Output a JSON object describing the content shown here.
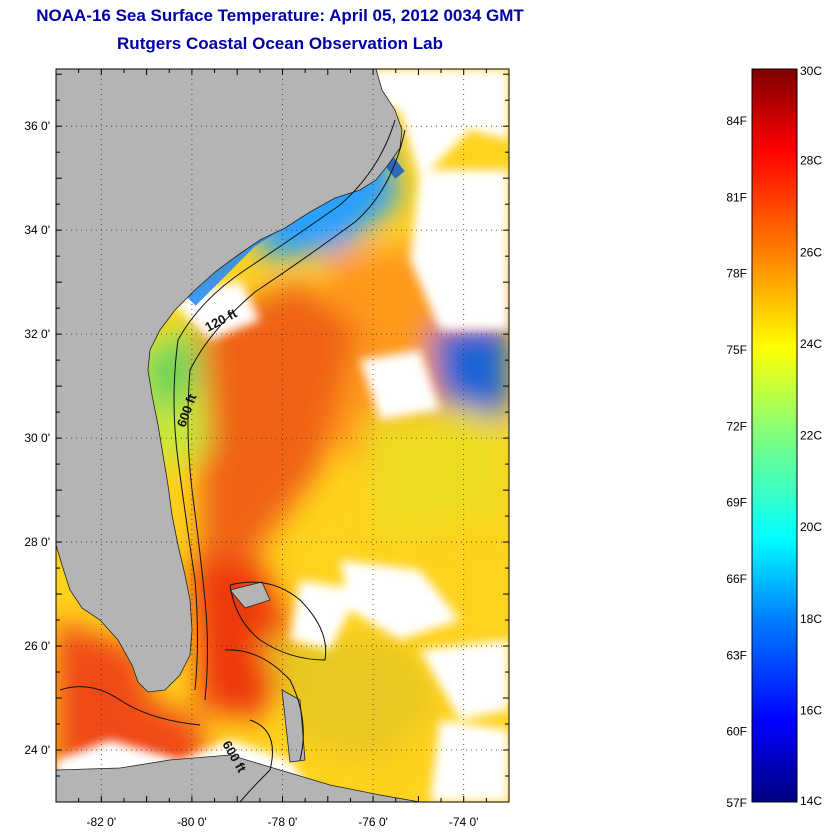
{
  "title": "NOAA-16 Sea Surface Temperature:  April 05, 2012 0034 GMT",
  "subtitle": "Rutgers Coastal Ocean Observation Lab",
  "map": {
    "lat_ticks": [
      {
        "value": 36,
        "label": "36 0'"
      },
      {
        "value": 34,
        "label": "34 0'"
      },
      {
        "value": 32,
        "label": "32 0'"
      },
      {
        "value": 30,
        "label": "30 0'"
      },
      {
        "value": 28,
        "label": "28 0'"
      },
      {
        "value": 26,
        "label": "26 0'"
      },
      {
        "value": 24,
        "label": "24 0'"
      }
    ],
    "lon_ticks": [
      {
        "value": -82,
        "label": "-82 0'"
      },
      {
        "value": -80,
        "label": "-80 0'"
      },
      {
        "value": -78,
        "label": "-78 0'"
      },
      {
        "value": -76,
        "label": "-76 0'"
      },
      {
        "value": -74,
        "label": "-74 0'"
      }
    ],
    "lat_range": [
      23,
      37.1
    ],
    "lon_range": [
      -83,
      -73
    ],
    "grid": "dotted",
    "contour_labels": [
      "120 ft",
      "600 ft",
      "600 ft"
    ],
    "colors": {
      "land": "#b4b4b4",
      "cloud": "#ffffff",
      "gulf_stream": "#f05a14",
      "coastal_cold": "#1e90ff"
    }
  },
  "colorbar": {
    "celsius_labels": [
      "30C",
      "28C",
      "26C",
      "24C",
      "22C",
      "20C",
      "18C",
      "16C",
      "14C"
    ],
    "fahrenheit_labels": [
      "84F",
      "81F",
      "78F",
      "75F",
      "72F",
      "69F",
      "66F",
      "63F",
      "60F",
      "57F"
    ],
    "range_c": [
      14,
      30
    ],
    "colormap": "jet"
  }
}
